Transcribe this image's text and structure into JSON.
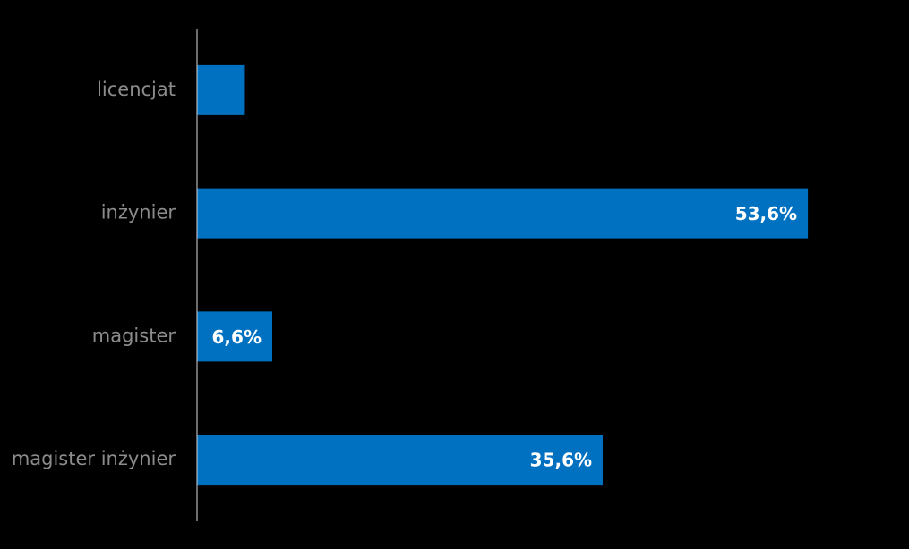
{
  "chart_data": {
    "type": "bar",
    "orientation": "horizontal",
    "categories": [
      "licencjat",
      "inżynier",
      "magister",
      "magister inżynier"
    ],
    "values": [
      4.2,
      53.6,
      6.6,
      35.6
    ],
    "value_labels": [
      null,
      "53,6%",
      "6,6%",
      "35,6%"
    ],
    "color": "#0070c0",
    "xlim": [
      0,
      62
    ]
  }
}
